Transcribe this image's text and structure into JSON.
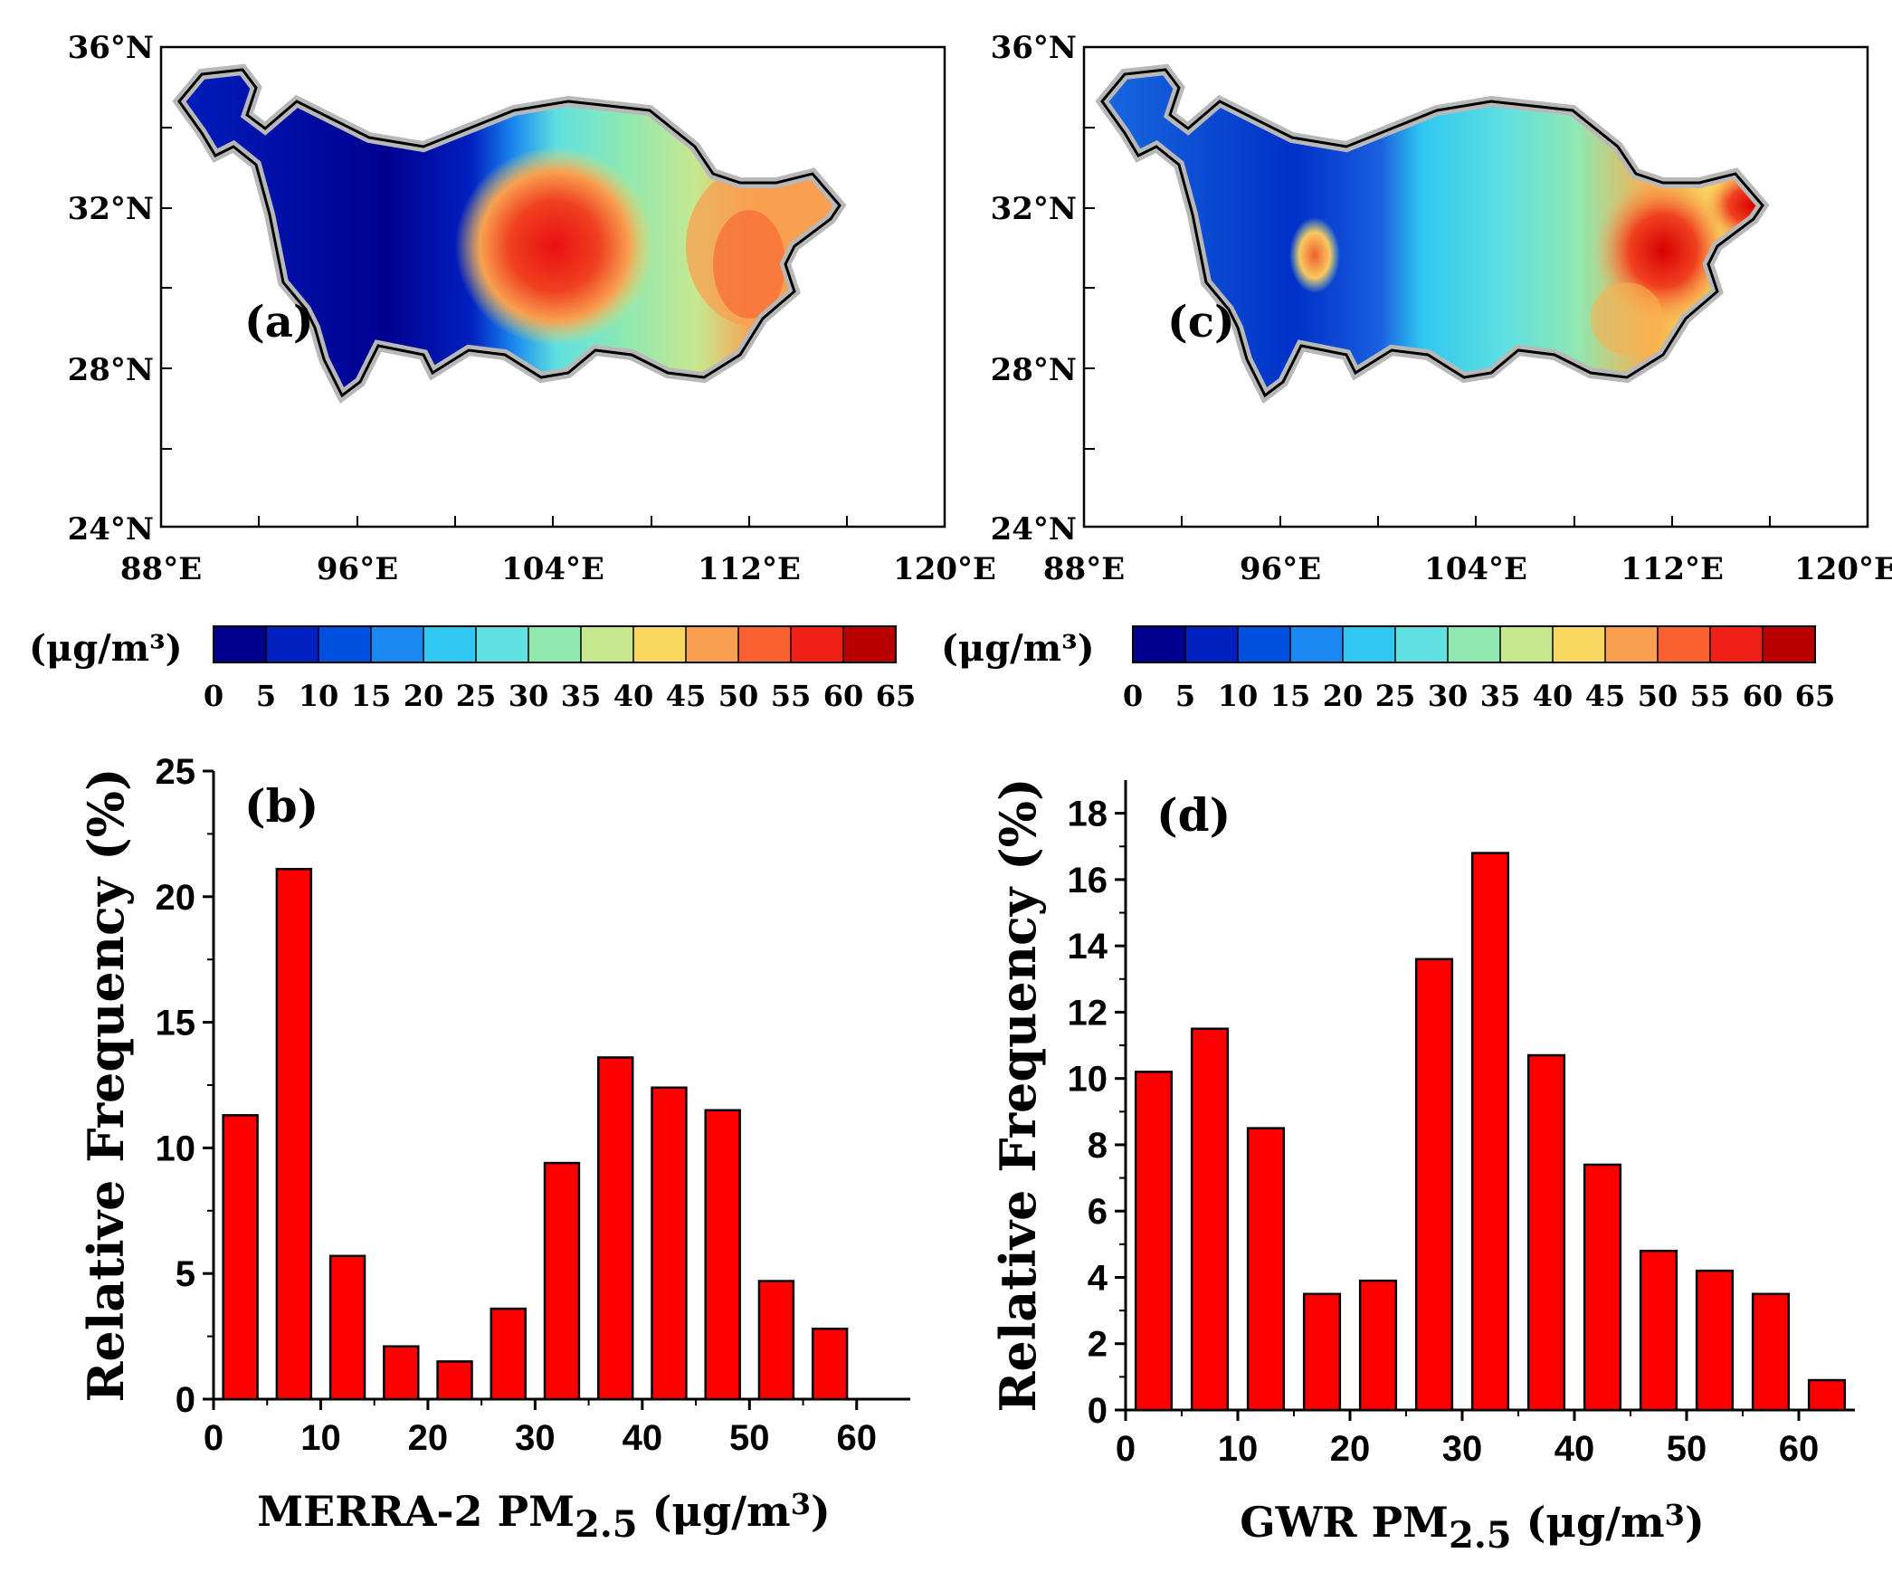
{
  "maps": [
    {
      "panel_label": "(a)",
      "lat_ticks": [
        "36°N",
        "32°N",
        "28°N",
        "24°N"
      ],
      "lon_ticks": [
        "88°E",
        "96°E",
        "104°E",
        "112°E",
        "120°E"
      ],
      "colorbar_unit": "(μg/m³)",
      "colorbar_ticks": [
        "0",
        "5",
        "10",
        "15",
        "20",
        "25",
        "30",
        "35",
        "40",
        "45",
        "50",
        "55",
        "60",
        "65"
      ]
    },
    {
      "panel_label": "(c)",
      "lat_ticks": [
        "36°N",
        "32°N",
        "28°N",
        "24°N"
      ],
      "lon_ticks": [
        "88°E",
        "96°E",
        "104°E",
        "112°E",
        "120°E"
      ],
      "colorbar_unit": "(μg/m³)",
      "colorbar_ticks": [
        "0",
        "5",
        "10",
        "15",
        "20",
        "25",
        "30",
        "35",
        "40",
        "45",
        "50",
        "55",
        "60",
        "65"
      ]
    }
  ],
  "colorbar_colors": [
    "#00008f",
    "#0020c0",
    "#0050e0",
    "#1a88f0",
    "#30c8f0",
    "#60e0e0",
    "#90e8b0",
    "#c8e890",
    "#f8d860",
    "#f8a050",
    "#f86030",
    "#f02018",
    "#b80000"
  ],
  "bar_color": "#ff0000",
  "chart_data": [
    {
      "type": "bar",
      "panel_label": "(b)",
      "title": "",
      "xlabel_main": "MERRA-2 PM",
      "xlabel_sub": "2.5",
      "xlabel_unit": " (μg/m",
      "xlabel_sup": "3",
      "xlabel_close": ")",
      "ylabel": "Relative Frequency (%)",
      "x": [
        2.5,
        7.5,
        12.5,
        17.5,
        22.5,
        27.5,
        32.5,
        37.5,
        42.5,
        47.5,
        52.5,
        57.5
      ],
      "values": [
        11.3,
        21.1,
        5.7,
        2.1,
        1.5,
        3.6,
        9.4,
        13.6,
        12.4,
        11.5,
        4.7,
        2.8
      ],
      "xlim": [
        0,
        65
      ],
      "ylim": [
        0,
        25
      ],
      "xticks": [
        0,
        10,
        20,
        30,
        40,
        50,
        60
      ],
      "yticks": [
        0,
        5,
        10,
        15,
        20,
        25
      ],
      "bar_width": 3.2
    },
    {
      "type": "bar",
      "panel_label": "(d)",
      "title": "",
      "xlabel_main": "GWR    PM",
      "xlabel_sub": "2.5",
      "xlabel_unit": " (μg/m",
      "xlabel_sup": "3",
      "xlabel_close": ")",
      "ylabel": "Relative Frequency (%)",
      "x": [
        2.5,
        7.5,
        12.5,
        17.5,
        22.5,
        27.5,
        32.5,
        37.5,
        42.5,
        47.5,
        52.5,
        57.5,
        62.5
      ],
      "values": [
        10.2,
        11.5,
        8.5,
        3.5,
        3.9,
        13.6,
        16.8,
        10.7,
        7.4,
        4.8,
        4.2,
        3.5,
        0.9
      ],
      "xlim": [
        0,
        65
      ],
      "ylim": [
        0,
        19
      ],
      "xticks": [
        0,
        10,
        20,
        30,
        40,
        50,
        60
      ],
      "yticks": [
        0,
        2,
        4,
        6,
        8,
        10,
        12,
        14,
        16,
        18
      ],
      "bar_width": 3.2
    }
  ]
}
